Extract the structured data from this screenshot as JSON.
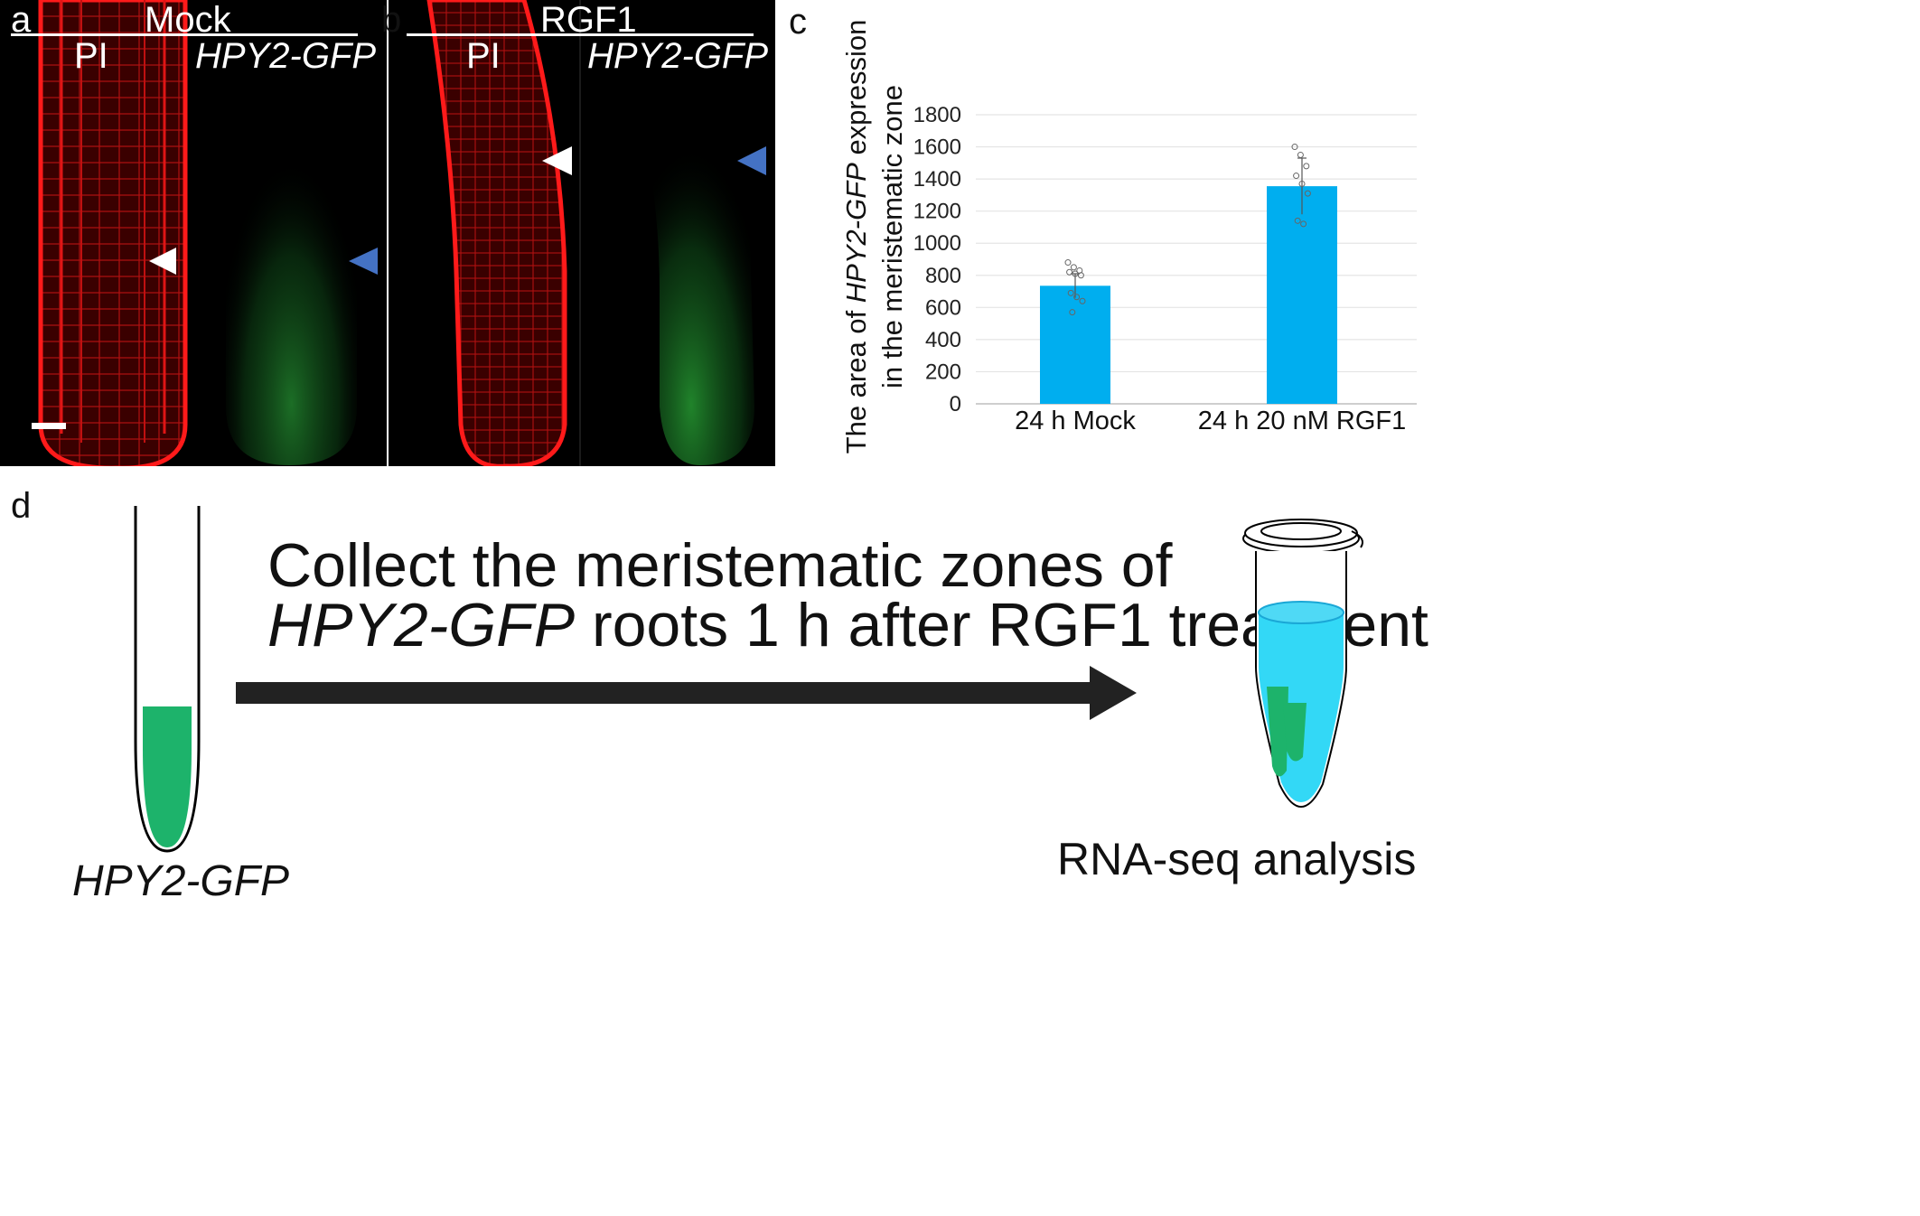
{
  "panels": {
    "a": {
      "letter": "a",
      "condition": "Mock",
      "left_label": "PI",
      "right_label": "HPY2-GFP"
    },
    "b": {
      "letter": "b",
      "condition": "RGF1",
      "left_label": "PI",
      "right_label": "HPY2-GFP"
    },
    "c": {
      "letter": "c"
    },
    "d": {
      "letter": "d"
    }
  },
  "chart_data": {
    "type": "bar",
    "categories": [
      "24 h Mock",
      "24 h 20 nM RGF1"
    ],
    "values": [
      735,
      1355
    ],
    "error_sd": [
      75,
      175
    ],
    "points": [
      [
        880,
        850,
        830,
        820,
        810,
        800,
        690,
        665,
        640,
        570
      ],
      [
        1600,
        1550,
        1480,
        1420,
        1370,
        1310,
        1140,
        1120
      ]
    ],
    "ylim": [
      0,
      1800
    ],
    "yticks": [
      0,
      200,
      400,
      600,
      800,
      1000,
      1200,
      1400,
      1600,
      1800
    ],
    "ylabel_prefix": "The area of ",
    "ylabel_italic": "HPY2-GFP",
    "ylabel_suffix": " expression",
    "ylabel_line2": "in the meristematic zone",
    "grid": true,
    "bar_color": "#00aeef"
  },
  "diagram": {
    "line1": "Collect the meristematic zones of",
    "line2_italic": "HPY2-GFP",
    "line2_rest": " roots 1 h after RGF1 treatment",
    "root_label": "HPY2-GFP",
    "tube_label": "RNA-seq analysis",
    "gfp_color": "#1db36b",
    "tube_liquid_color": "#33d8f6"
  }
}
